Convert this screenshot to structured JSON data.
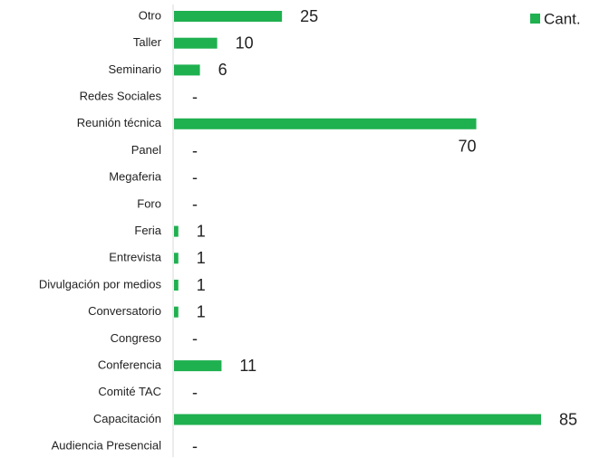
{
  "chart_data": {
    "type": "bar",
    "orientation": "horizontal",
    "categories": [
      "Otro",
      "Taller",
      "Seminario",
      "Redes Sociales",
      "Reunión técnica",
      "Panel",
      "Megaferia",
      "Foro",
      "Feria",
      "Entrevista",
      "Divulgación por medios",
      "Conversatorio",
      "Congreso",
      "Conferencia",
      "Comité TAC",
      "Capacitación",
      "Audiencia Presencial"
    ],
    "series": [
      {
        "name": "Cant.",
        "color": "#1fb050",
        "values": [
          25,
          10,
          6,
          0,
          70,
          0,
          0,
          0,
          1,
          1,
          1,
          1,
          0,
          11,
          0,
          85,
          0
        ],
        "value_labels": [
          "25",
          "10",
          "6",
          "-",
          "70",
          "-",
          "-",
          "-",
          "1",
          "1",
          "1",
          "1",
          "-",
          "11",
          "-",
          "85",
          "-"
        ]
      }
    ],
    "legend": "top-right"
  }
}
